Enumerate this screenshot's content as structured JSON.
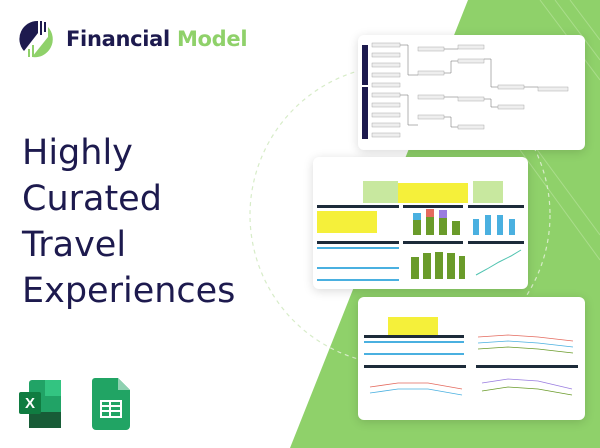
{
  "brand": {
    "part1": "Financial",
    "part2": "Model"
  },
  "headline": {
    "lines": [
      "Highly",
      "Curated",
      "Travel",
      "Experiences"
    ]
  },
  "colors": {
    "navy": "#1d1a4e",
    "green": "#8fd16a",
    "excel": "#1f7244",
    "sheets": "#21a464"
  },
  "icons": [
    "excel-icon",
    "google-sheets-icon"
  ]
}
